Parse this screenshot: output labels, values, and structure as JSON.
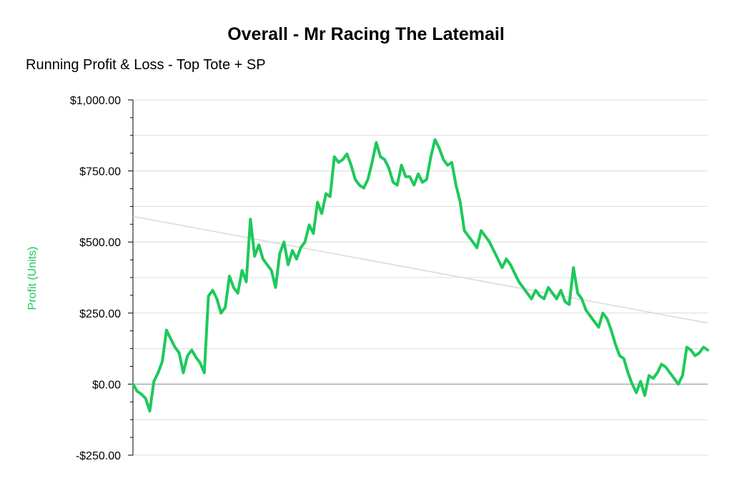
{
  "chart_data": {
    "type": "line",
    "title": "Overall - Mr Racing The Latemail",
    "subtitle": "Running Profit & Loss - Top Tote + SP",
    "ylabel": "Profit (Units)",
    "xlabel": "",
    "ylim": [
      -250,
      1000
    ],
    "y_ticks": [
      -250,
      0,
      250,
      500,
      750,
      1000
    ],
    "y_tick_labels": [
      "-$250.00",
      "$0.00",
      "$250.00",
      "$500.00",
      "$750.00",
      "$1,000.00"
    ],
    "grid": true,
    "colors": {
      "series": "#1ec95a",
      "trend": "#d9d9d9",
      "grid": "#dcdcdc",
      "zero": "#8c8c8c",
      "ylabel": "#1ec95a"
    },
    "series": [
      {
        "values": [
          0,
          -25,
          -35,
          -50,
          -95,
          10,
          40,
          80,
          190,
          160,
          130,
          110,
          40,
          100,
          120,
          95,
          75,
          40,
          310,
          330,
          300,
          250,
          270,
          380,
          340,
          320,
          400,
          360,
          580,
          450,
          490,
          440,
          420,
          400,
          340,
          460,
          500,
          420,
          470,
          440,
          480,
          500,
          560,
          530,
          640,
          600,
          670,
          660,
          800,
          780,
          790,
          810,
          770,
          720,
          700,
          690,
          720,
          780,
          850,
          800,
          790,
          760,
          710,
          700,
          770,
          730,
          730,
          700,
          740,
          710,
          720,
          800,
          860,
          830,
          790,
          770,
          780,
          700,
          640,
          540,
          520,
          500,
          480,
          540,
          520,
          500,
          470,
          440,
          410,
          440,
          420,
          390,
          360,
          340,
          320,
          300,
          330,
          310,
          300,
          340,
          320,
          300,
          330,
          290,
          280,
          410,
          320,
          300,
          260,
          240,
          220,
          200,
          250,
          230,
          190,
          140,
          100,
          90,
          40,
          0,
          -30,
          10,
          -40,
          30,
          20,
          40,
          70,
          60,
          40,
          20,
          0,
          30,
          130,
          120,
          100,
          110,
          130,
          120
        ]
      },
      {
        "values": [
          590,
          215
        ]
      }
    ]
  }
}
